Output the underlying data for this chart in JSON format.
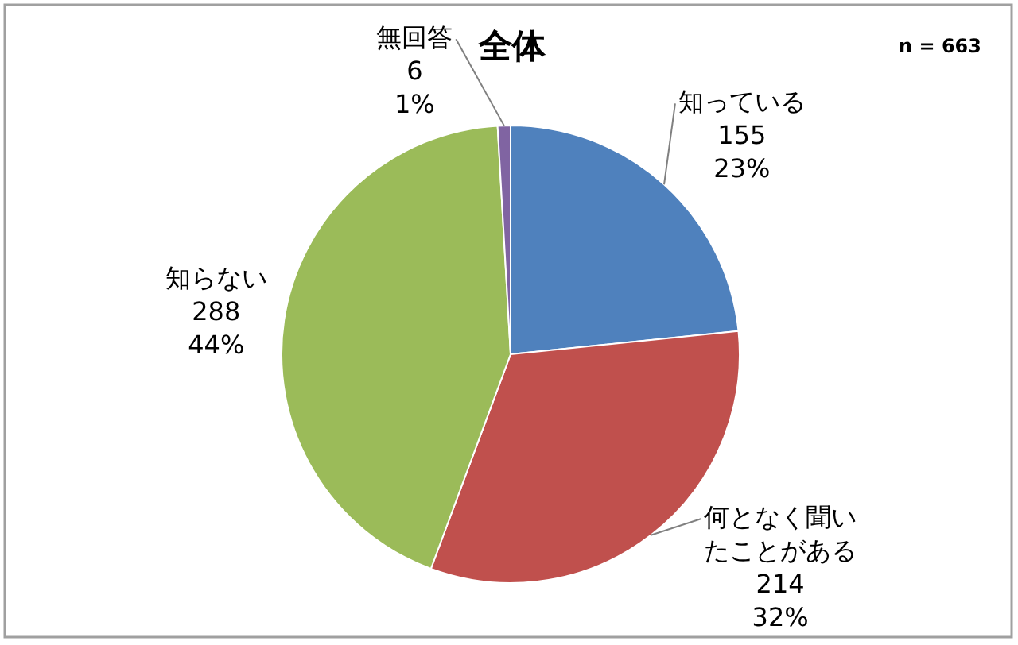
{
  "chart_data": {
    "type": "pie",
    "title": "全体",
    "annotations": [
      "n = 663"
    ],
    "categories": [
      "知っている",
      "何となく聞いたことがある",
      "知らない",
      "無回答"
    ],
    "values": [
      155,
      214,
      288,
      6
    ],
    "value_labels": [
      "155 23%",
      "214 32%",
      "288 44%",
      "6 1%"
    ],
    "colors": [
      "#4f81bd",
      "#c0504d",
      "#9bbb59",
      "#8064a2"
    ]
  }
}
